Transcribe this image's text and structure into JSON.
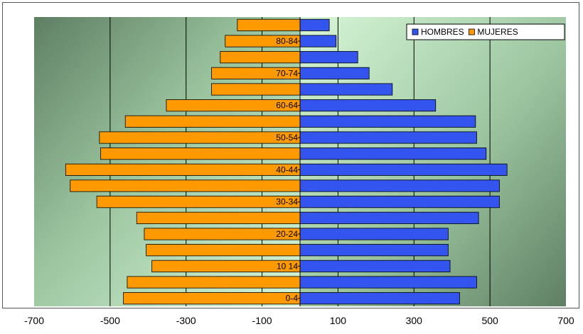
{
  "chart_data": {
    "type": "bar",
    "orientation": "horizontal",
    "stacked_diverging": true,
    "categories": [
      "0-4",
      "",
      "10 14",
      "",
      "20-24",
      "",
      "30-34",
      "",
      "40-44",
      "",
      "50-54",
      "",
      "60-64",
      "",
      "70-74",
      "",
      "80-84",
      ""
    ],
    "series": [
      {
        "name": "HOMBRES",
        "color": "#3355ee",
        "values": [
          420,
          465,
          395,
          390,
          390,
          470,
          525,
          525,
          545,
          490,
          465,
          462,
          357,
          243,
          182,
          152,
          95,
          77
        ]
      },
      {
        "name": "MUJERES",
        "color": "#ff9900",
        "values": [
          -465,
          -455,
          -390,
          -405,
          -410,
          -430,
          -535,
          -605,
          -617,
          -525,
          -528,
          -460,
          -352,
          -233,
          -233,
          -210,
          -197,
          -165
        ]
      }
    ],
    "xlim": [
      -700,
      700
    ],
    "xticks": [
      -700,
      -500,
      -300,
      -100,
      100,
      300,
      500,
      700
    ],
    "legend": "top-right",
    "grid": true
  }
}
